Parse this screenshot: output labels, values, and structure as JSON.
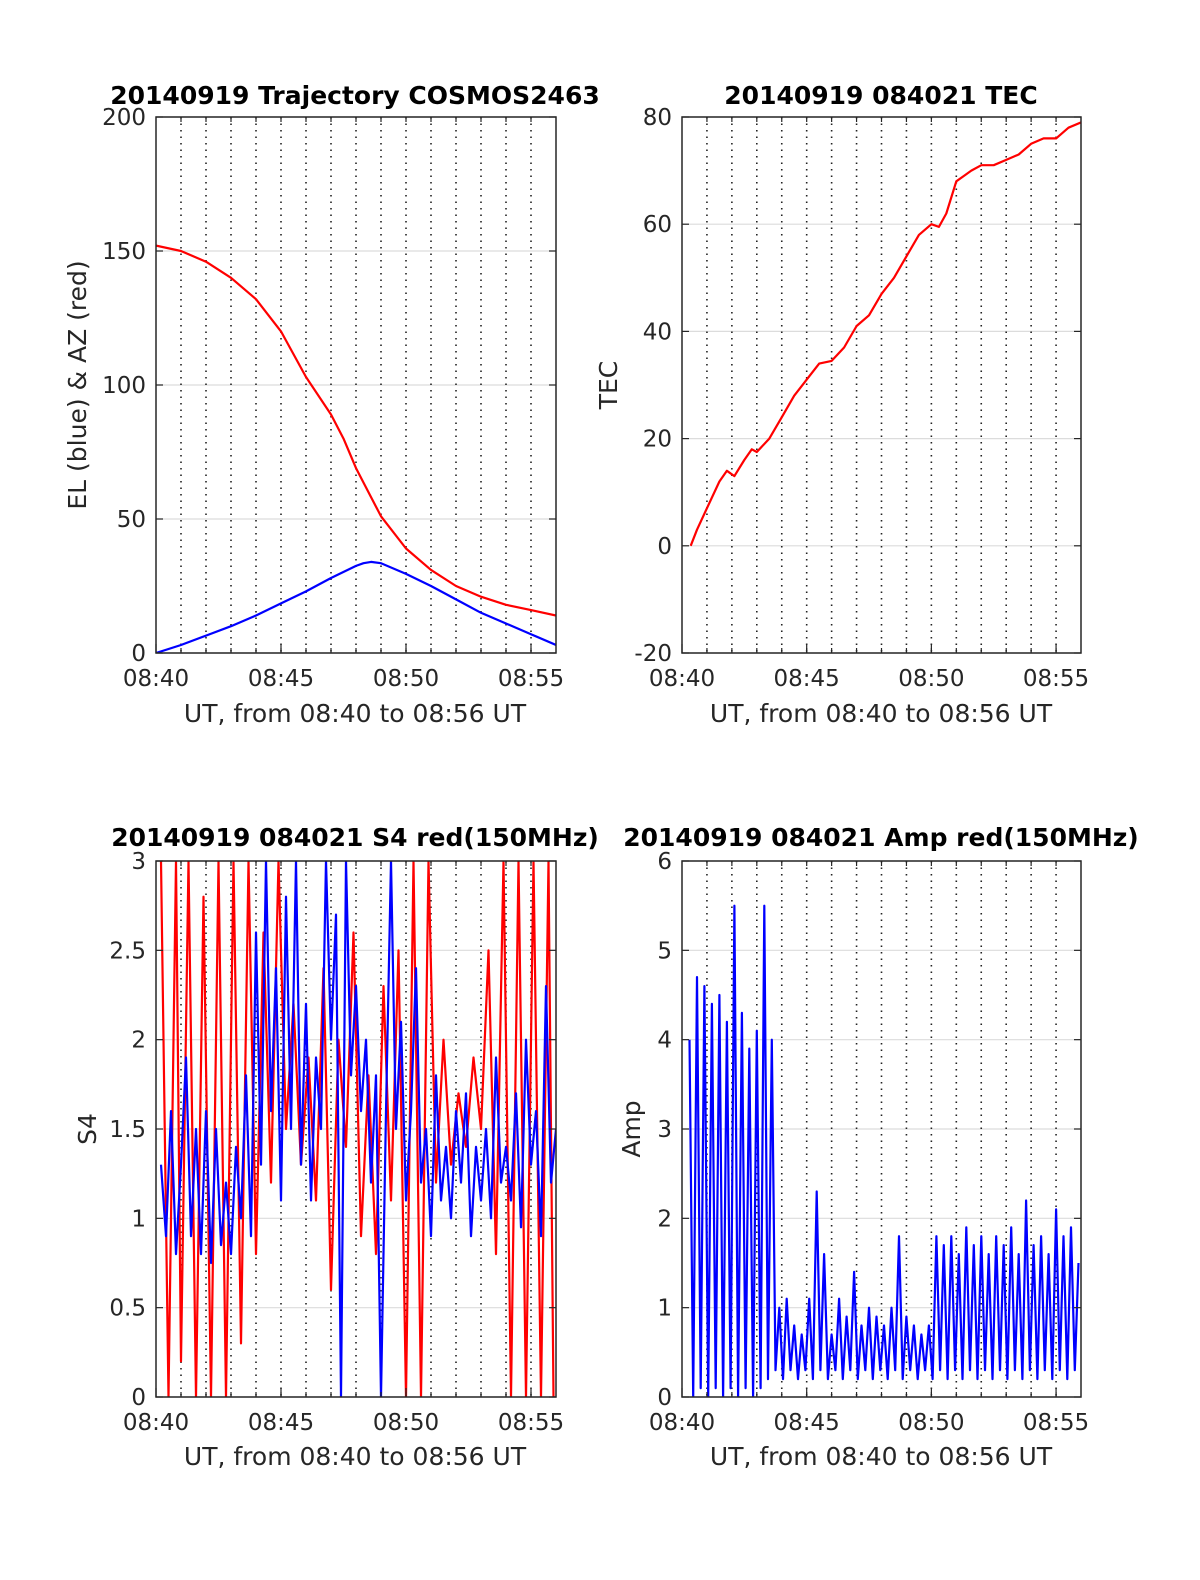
{
  "chart_data": [
    {
      "type": "line",
      "title": "20140919 Trajectory COSMOS2463",
      "xlabel": "UT, from 08:40 to 08:56 UT",
      "ylabel": "EL (blue) & AZ (red)",
      "x_unit": "minutes after 08:40 UT",
      "xlim": [
        0,
        16
      ],
      "ylim": [
        0,
        200
      ],
      "xticks": [
        0,
        5,
        10,
        15
      ],
      "xtick_labels": [
        "08:40",
        "08:45",
        "08:50",
        "08:55"
      ],
      "yticks": [
        0,
        50,
        100,
        150,
        200
      ],
      "ytick_labels": [
        "0",
        "50",
        "100",
        "150",
        "200"
      ],
      "minor_x_grid": [
        1,
        2,
        3,
        4,
        5,
        6,
        7,
        8,
        9,
        10,
        11,
        12,
        13,
        14,
        15
      ],
      "grid": true,
      "series": [
        {
          "color": "#ff0000",
          "x": [
            0,
            1,
            2,
            3,
            4,
            5,
            6,
            7,
            7.5,
            8,
            8.5,
            9,
            10,
            11,
            12,
            13,
            14,
            15,
            16
          ],
          "y": [
            152,
            150,
            146,
            140,
            132,
            120,
            103,
            89,
            80,
            69,
            60,
            51,
            39,
            31,
            25,
            21,
            18,
            16,
            14
          ]
        },
        {
          "color": "#0000ff",
          "x": [
            0,
            1,
            2,
            3,
            4,
            5,
            6,
            7,
            8,
            8.3,
            8.6,
            9,
            10,
            11,
            12,
            13,
            14,
            15,
            16
          ],
          "y": [
            0,
            3,
            6.5,
            10,
            14,
            18.5,
            23,
            28,
            32.5,
            33.5,
            34,
            33.5,
            29.5,
            25,
            20,
            15,
            11,
            7,
            3
          ]
        }
      ]
    },
    {
      "type": "line",
      "title": "20140919 084021 TEC",
      "xlabel": "UT, from 08:40 to 08:56 UT",
      "ylabel": "TEC",
      "x_unit": "minutes after 08:40 UT",
      "xlim": [
        0,
        16
      ],
      "ylim": [
        -20,
        80
      ],
      "xticks": [
        0,
        5,
        10,
        15
      ],
      "xtick_labels": [
        "08:40",
        "08:45",
        "08:50",
        "08:55"
      ],
      "yticks": [
        -20,
        0,
        20,
        40,
        60,
        80
      ],
      "ytick_labels": [
        "-20",
        "0",
        "20",
        "40",
        "60",
        "80"
      ],
      "minor_x_grid": [
        1,
        2,
        3,
        4,
        5,
        6,
        7,
        8,
        9,
        10,
        11,
        12,
        13,
        14,
        15
      ],
      "grid": true,
      "series": [
        {
          "color": "#ff0000",
          "x": [
            0.35,
            0.6,
            1.0,
            1.5,
            1.8,
            2.1,
            2.5,
            2.8,
            3.0,
            3.5,
            4.0,
            4.5,
            5.0,
            5.5,
            6.0,
            6.5,
            7.0,
            7.5,
            8.0,
            8.5,
            9.0,
            9.5,
            10.0,
            10.3,
            10.6,
            11.0,
            11.3,
            11.6,
            12.0,
            12.5,
            13.0,
            13.5,
            14.0,
            14.5,
            15.0,
            15.5,
            16.0
          ],
          "y": [
            0,
            3,
            7,
            12,
            14,
            13,
            16,
            18,
            17.5,
            20,
            24,
            28,
            31,
            34,
            34.5,
            37,
            41,
            43,
            47,
            50,
            54,
            58,
            60,
            59.5,
            62,
            68,
            69,
            70,
            71,
            71,
            72,
            73,
            75,
            76,
            76,
            78,
            79
          ]
        }
      ]
    },
    {
      "type": "line",
      "title": "20140919 084021 S4 red(150MHz)",
      "xlabel": "UT, from 08:40 to 08:56 UT",
      "ylabel": "S4",
      "x_unit": "minutes after 08:40 UT",
      "xlim": [
        0,
        16
      ],
      "ylim": [
        0,
        3
      ],
      "xticks": [
        0,
        5,
        10,
        15
      ],
      "xtick_labels": [
        "08:40",
        "08:45",
        "08:50",
        "08:55"
      ],
      "yticks": [
        0,
        0.5,
        1,
        1.5,
        2,
        2.5,
        3
      ],
      "ytick_labels": [
        "0",
        "0.5",
        "1",
        "1.5",
        "2",
        "2.5",
        "3"
      ],
      "minor_x_grid": [
        1,
        2,
        3,
        4,
        5,
        6,
        7,
        8,
        9,
        10,
        11,
        12,
        13,
        14,
        15
      ],
      "grid": true,
      "series": [
        {
          "color": "#ff0000",
          "x": [
            0.2,
            0.5,
            0.8,
            1.0,
            1.3,
            1.6,
            1.9,
            2.2,
            2.5,
            2.8,
            3.1,
            3.4,
            3.7,
            4.0,
            4.3,
            4.6,
            4.9,
            5.2,
            5.5,
            5.8,
            6.1,
            6.4,
            6.7,
            7.0,
            7.3,
            7.6,
            7.9,
            8.2,
            8.5,
            8.8,
            9.1,
            9.4,
            9.7,
            10.0,
            10.3,
            10.6,
            10.9,
            11.2,
            11.5,
            11.8,
            12.1,
            12.4,
            12.7,
            13.0,
            13.3,
            13.6,
            13.9,
            14.2,
            14.5,
            14.8,
            15.1,
            15.4,
            15.7,
            15.9
          ],
          "y": [
            3,
            0,
            3,
            0.2,
            3,
            0,
            2.8,
            0,
            3,
            0,
            3,
            0.3,
            3,
            0.8,
            2.6,
            1.2,
            3,
            1.5,
            2.2,
            1.3,
            1.9,
            1.1,
            2.4,
            0.6,
            2.0,
            1.4,
            2.6,
            0.9,
            1.8,
            0.8,
            2.3,
            1.1,
            2.5,
            0,
            3,
            0,
            3,
            1.2,
            2.0,
            1.3,
            1.7,
            1.4,
            1.9,
            1.5,
            2.5,
            0.8,
            3,
            0,
            3,
            0,
            3,
            0,
            3,
            0
          ]
        },
        {
          "color": "#0000ff",
          "x": [
            0.2,
            0.4,
            0.6,
            0.8,
            1.0,
            1.2,
            1.4,
            1.6,
            1.8,
            2.0,
            2.2,
            2.4,
            2.6,
            2.8,
            3.0,
            3.2,
            3.4,
            3.6,
            3.8,
            4.0,
            4.2,
            4.4,
            4.6,
            4.8,
            5.0,
            5.2,
            5.4,
            5.6,
            5.8,
            6.0,
            6.2,
            6.4,
            6.6,
            6.8,
            7.0,
            7.2,
            7.4,
            7.6,
            7.8,
            8.0,
            8.2,
            8.4,
            8.6,
            8.8,
            9.0,
            9.2,
            9.4,
            9.6,
            9.8,
            10.0,
            10.2,
            10.4,
            10.6,
            10.8,
            11.0,
            11.2,
            11.4,
            11.6,
            11.8,
            12.0,
            12.2,
            12.4,
            12.6,
            12.8,
            13.0,
            13.2,
            13.4,
            13.6,
            13.8,
            14.0,
            14.2,
            14.4,
            14.6,
            14.8,
            15.0,
            15.2,
            15.4,
            15.6,
            15.8,
            16.0
          ],
          "y": [
            1.3,
            0.9,
            1.6,
            0.8,
            1.3,
            1.9,
            0.9,
            1.5,
            0.8,
            1.6,
            0.75,
            1.5,
            0.85,
            1.2,
            0.8,
            1.4,
            1.0,
            1.8,
            0.9,
            2.6,
            1.3,
            3.0,
            1.6,
            2.4,
            1.1,
            2.8,
            1.5,
            3.0,
            1.3,
            2.2,
            1.1,
            1.9,
            1.5,
            3.0,
            2.0,
            2.7,
            0,
            3.0,
            1.8,
            2.3,
            1.6,
            2.0,
            1.2,
            1.8,
            0,
            1.6,
            3.0,
            1.5,
            2.1,
            1.1,
            1.6,
            2.4,
            1.2,
            1.5,
            0.9,
            1.8,
            1.1,
            1.4,
            1.0,
            1.6,
            1.2,
            1.7,
            0.9,
            1.4,
            1.1,
            1.5,
            1.0,
            1.9,
            1.2,
            1.4,
            1.1,
            1.7,
            0.95,
            2.0,
            1.3,
            1.6,
            0.9,
            2.3,
            1.2,
            1.5
          ]
        }
      ]
    },
    {
      "type": "line",
      "title": "20140919 084021 Amp red(150MHz)",
      "xlabel": "UT, from 08:40 to 08:56 UT",
      "ylabel": "Amp",
      "x_unit": "minutes after 08:40 UT",
      "xlim": [
        0,
        16
      ],
      "ylim": [
        0,
        6
      ],
      "xticks": [
        0,
        5,
        10,
        15
      ],
      "xtick_labels": [
        "08:40",
        "08:45",
        "08:50",
        "08:55"
      ],
      "yticks": [
        0,
        1,
        2,
        3,
        4,
        5,
        6
      ],
      "ytick_labels": [
        "0",
        "1",
        "2",
        "3",
        "4",
        "5",
        "6"
      ],
      "minor_x_grid": [
        1,
        2,
        3,
        4,
        5,
        6,
        7,
        8,
        9,
        10,
        11,
        12,
        13,
        14,
        15
      ],
      "grid": true,
      "series": [
        {
          "color": "#0000ff",
          "x": [
            0.3,
            0.45,
            0.6,
            0.75,
            0.9,
            1.05,
            1.2,
            1.35,
            1.5,
            1.65,
            1.8,
            1.95,
            2.1,
            2.25,
            2.4,
            2.55,
            2.7,
            2.85,
            3.0,
            3.15,
            3.3,
            3.45,
            3.6,
            3.75,
            3.9,
            4.05,
            4.2,
            4.35,
            4.5,
            4.65,
            4.8,
            4.95,
            5.1,
            5.25,
            5.4,
            5.55,
            5.7,
            5.85,
            6.0,
            6.15,
            6.3,
            6.45,
            6.6,
            6.75,
            6.9,
            7.05,
            7.2,
            7.35,
            7.5,
            7.65,
            7.8,
            7.95,
            8.1,
            8.25,
            8.4,
            8.55,
            8.7,
            8.85,
            9.0,
            9.15,
            9.3,
            9.45,
            9.6,
            9.75,
            9.9,
            10.05,
            10.2,
            10.35,
            10.5,
            10.65,
            10.8,
            10.95,
            11.1,
            11.25,
            11.4,
            11.55,
            11.7,
            11.85,
            12.0,
            12.15,
            12.3,
            12.45,
            12.6,
            12.75,
            12.9,
            13.05,
            13.2,
            13.35,
            13.5,
            13.65,
            13.8,
            13.95,
            14.1,
            14.25,
            14.4,
            14.55,
            14.7,
            14.85,
            15.0,
            15.15,
            15.3,
            15.45,
            15.6,
            15.75,
            15.9
          ],
          "y": [
            4.0,
            0,
            4.7,
            0.1,
            4.6,
            0,
            4.4,
            0.1,
            4.5,
            0,
            4.2,
            0.1,
            5.5,
            0,
            4.3,
            0.1,
            3.9,
            0,
            4.1,
            0.1,
            5.5,
            0.2,
            4.0,
            0.3,
            1.0,
            0.2,
            1.1,
            0.3,
            0.8,
            0.2,
            0.7,
            0.3,
            1.1,
            0.2,
            2.3,
            0.3,
            1.6,
            0.2,
            0.7,
            0.3,
            1.1,
            0.2,
            0.9,
            0.3,
            1.4,
            0.2,
            0.8,
            0.3,
            1.0,
            0.2,
            0.9,
            0.3,
            0.8,
            0.2,
            1.0,
            0.3,
            1.8,
            0.2,
            0.9,
            0.3,
            0.8,
            0.2,
            0.7,
            0.3,
            0.8,
            0.2,
            1.8,
            0.3,
            1.7,
            0.2,
            1.8,
            0.3,
            1.6,
            0.2,
            1.9,
            0.3,
            1.7,
            0.2,
            1.8,
            0.3,
            1.6,
            0.2,
            1.8,
            0.3,
            1.7,
            0.2,
            1.9,
            0.3,
            1.6,
            0.2,
            2.2,
            0.3,
            1.7,
            0.2,
            1.8,
            0.3,
            1.6,
            0.2,
            2.1,
            0.3,
            1.8,
            0.2,
            1.9,
            0.3,
            1.5
          ]
        }
      ]
    }
  ]
}
